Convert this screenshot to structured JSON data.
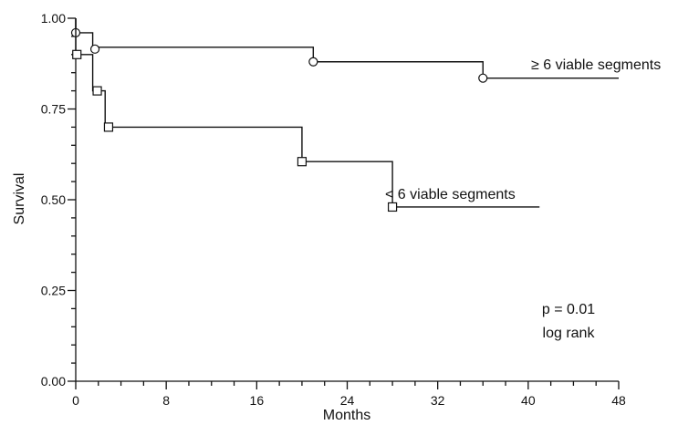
{
  "chart_data": {
    "type": "line",
    "subtype": "kaplan-meier step survival curves",
    "xlabel": "Months",
    "ylabel": "Survival",
    "xlim": [
      0,
      48
    ],
    "ylim": [
      0,
      1
    ],
    "x_ticks": [
      "0",
      "8",
      "16",
      "24",
      "32",
      "40",
      "48"
    ],
    "y_ticks": [
      "0.00",
      "0.25",
      "0.50",
      "0.75",
      "1.00"
    ],
    "grid": false,
    "legend": "none",
    "series": [
      {
        "name": "≥ 6 viable segments",
        "marker": "circle",
        "steps": [
          [
            0,
            1.0
          ],
          [
            0,
            0.96
          ],
          [
            1.5,
            0.92
          ],
          [
            21,
            0.88
          ],
          [
            36,
            0.835
          ]
        ],
        "x_end": 48,
        "markers": [
          [
            0,
            0.96
          ],
          [
            1.7,
            0.915
          ],
          [
            21,
            0.88
          ],
          [
            36,
            0.835
          ]
        ]
      },
      {
        "name": "< 6 viable segments",
        "marker": "square",
        "steps": [
          [
            0,
            1.0
          ],
          [
            0,
            0.9
          ],
          [
            1.5,
            0.8
          ],
          [
            2.6,
            0.7
          ],
          [
            20,
            0.605
          ],
          [
            28,
            0.48
          ]
        ],
        "x_end": 41,
        "markers": [
          [
            0.1,
            0.9
          ],
          [
            1.9,
            0.8
          ],
          [
            2.9,
            0.7
          ],
          [
            20,
            0.605
          ],
          [
            28,
            0.48
          ]
        ]
      }
    ],
    "annotations": [
      {
        "text": "≥ 6 viable segments",
        "series": 0
      },
      {
        "text": "< 6 viable segments",
        "series": 1
      },
      {
        "text": "p = 0.01"
      },
      {
        "text": "log rank"
      }
    ]
  }
}
